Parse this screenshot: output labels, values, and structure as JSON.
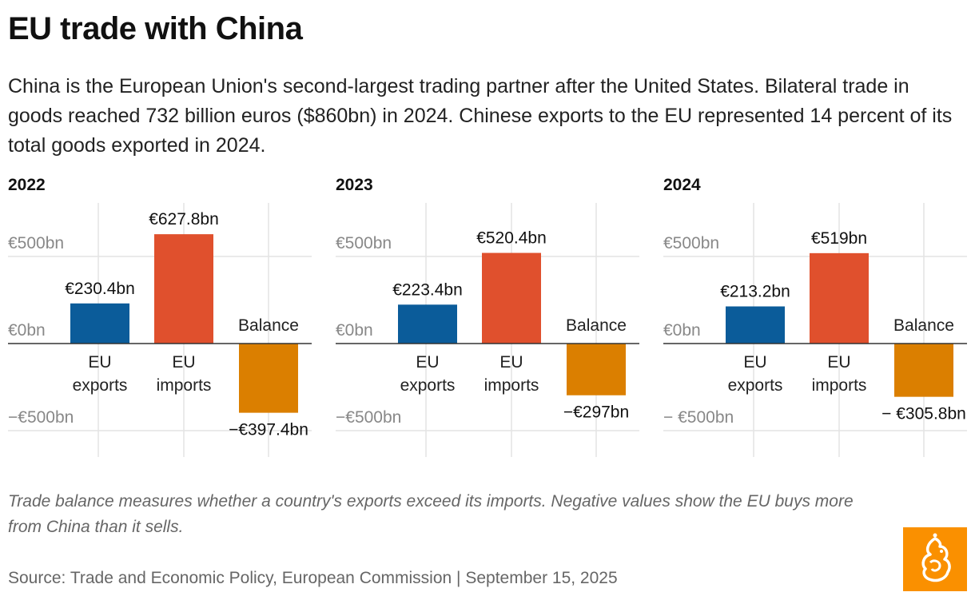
{
  "header": {
    "title": "EU trade with China",
    "subtitle": "China is the European Union's second-largest trading partner after the United States. Bilateral trade in goods reached 732 billion euros ($860bn) in 2024. Chinese exports to the EU represented 14 percent of its total goods exported in 2024."
  },
  "chart_data": [
    {
      "type": "bar",
      "title": "2022",
      "categories": [
        "EU\nexports",
        "EU\nimports",
        "Balance"
      ],
      "values": [
        230.4,
        627.8,
        -397.4
      ],
      "value_labels": [
        "€230.4bn",
        "€627.8bn",
        "−€397.4bn"
      ],
      "y_ticks": [
        {
          "value": 500,
          "label": "€500bn"
        },
        {
          "value": 0,
          "label": "€0bn"
        },
        {
          "value": -500,
          "label": "−€500bn"
        }
      ],
      "colors": [
        "#0b5c9a",
        "#e0502d",
        "#db7f00"
      ],
      "grid": true
    },
    {
      "type": "bar",
      "title": "2023",
      "categories": [
        "EU\nexports",
        "EU\nimports",
        "Balance"
      ],
      "values": [
        223.4,
        520.4,
        -297
      ],
      "value_labels": [
        "€223.4bn",
        "€520.4bn",
        "−€297bn"
      ],
      "y_ticks": [
        {
          "value": 500,
          "label": "€500bn"
        },
        {
          "value": 0,
          "label": "€0bn"
        },
        {
          "value": -500,
          "label": "−€500bn"
        }
      ],
      "colors": [
        "#0b5c9a",
        "#e0502d",
        "#db7f00"
      ],
      "grid": true
    },
    {
      "type": "bar",
      "title": "2024",
      "categories": [
        "EU\nexports",
        "EU\nimports",
        "Balance"
      ],
      "values": [
        213.2,
        519,
        -305.8
      ],
      "value_labels": [
        "€213.2bn",
        "€519bn",
        "− €305.8bn"
      ],
      "y_ticks": [
        {
          "value": 500,
          "label": "€500bn"
        },
        {
          "value": 0,
          "label": "€0bn"
        },
        {
          "value": -500,
          "label": "− €500bn"
        }
      ],
      "colors": [
        "#0b5c9a",
        "#e0502d",
        "#db7f00"
      ],
      "grid": true
    }
  ],
  "footer": {
    "note": "Trade balance measures whether a country's exports exceed its imports. Negative values show the EU buys more from China than it sells.",
    "source": "Source: Trade and Economic Policy, European Commission | September 15, 2025",
    "logo_icon": "al-jazeera-logo-icon",
    "logo_color": "#fa9000"
  }
}
